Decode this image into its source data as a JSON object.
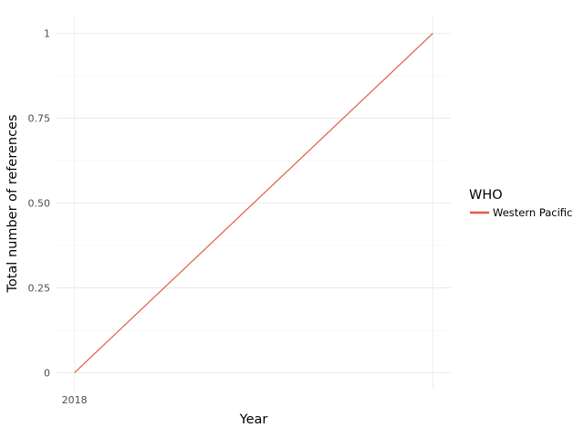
{
  "chart_data": {
    "type": "line",
    "title": "",
    "xlabel": "Year",
    "ylabel": "Total number of references",
    "x_tick_labels": [
      "2018"
    ],
    "y_ticks": [
      0,
      0.25,
      0.5,
      0.75,
      1
    ],
    "y_tick_labels": [
      "0",
      "0.25",
      "0.50",
      "0.75",
      "1"
    ],
    "ylim": [
      -0.05,
      1.05
    ],
    "grid": true,
    "legend_position": "right",
    "legend_title": "WHO",
    "series": [
      {
        "name": "Western Pacific",
        "color": "#e05a47",
        "points": [
          {
            "x": 2018,
            "y": 0
          },
          {
            "x": 2019,
            "y": 1
          }
        ]
      }
    ]
  }
}
